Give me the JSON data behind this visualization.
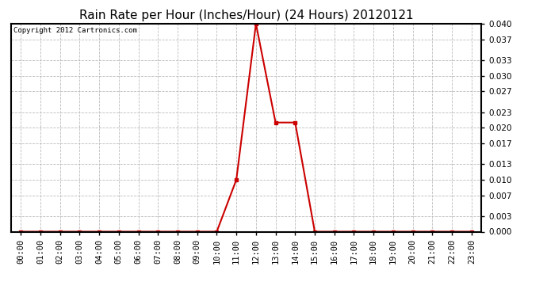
{
  "title": "Rain Rate per Hour (Inches/Hour) (24 Hours) 20120121",
  "copyright_text": "Copyright 2012 Cartronics.com",
  "line_color": "#cc0000",
  "marker_color": "#cc0000",
  "background_color": "#ffffff",
  "plot_bg_color": "#ffffff",
  "grid_color": "#bbbbbb",
  "hours": [
    0,
    1,
    2,
    3,
    4,
    5,
    6,
    7,
    8,
    9,
    10,
    11,
    12,
    13,
    14,
    15,
    16,
    17,
    18,
    19,
    20,
    21,
    22,
    23
  ],
  "values": [
    0.0,
    0.0,
    0.0,
    0.0,
    0.0,
    0.0,
    0.0,
    0.0,
    0.0,
    0.0,
    0.0,
    0.01,
    0.04,
    0.021,
    0.021,
    0.0,
    0.0,
    0.0,
    0.0,
    0.0,
    0.0,
    0.0,
    0.0,
    0.0
  ],
  "ylim": [
    0.0,
    0.04
  ],
  "yticks": [
    0.0,
    0.003,
    0.007,
    0.01,
    0.013,
    0.017,
    0.02,
    0.023,
    0.027,
    0.03,
    0.033,
    0.037,
    0.04
  ],
  "xlabel_rotation": 90,
  "title_fontsize": 11,
  "tick_fontsize": 7.5,
  "copyright_fontsize": 6.5,
  "figsize": [
    6.9,
    3.75
  ],
  "dpi": 100
}
